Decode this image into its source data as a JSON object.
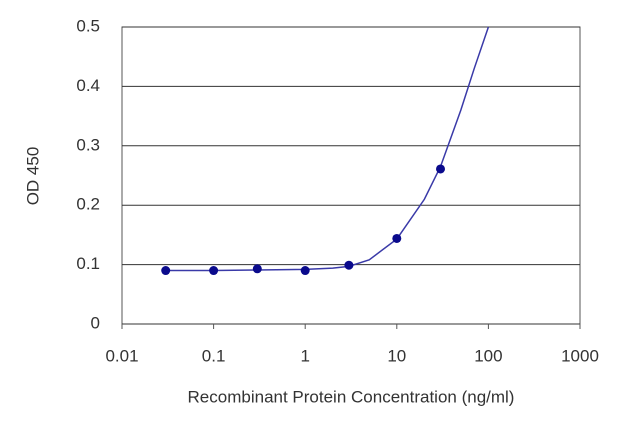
{
  "chart_data": {
    "type": "scatter",
    "y_label": "OD 450",
    "x_label": "Recombinant Protein Concentration (ng/ml)",
    "x": [
      0.03,
      0.1,
      0.3,
      1,
      3,
      10,
      30
    ],
    "values": [
      0.09,
      0.09,
      0.093,
      0.09,
      0.099,
      0.144,
      0.261
    ],
    "color": "#0a0a8c",
    "fit": {
      "x": [
        0.03,
        0.1,
        0.3,
        1,
        2,
        3,
        5,
        10,
        20,
        30,
        50,
        70,
        100
      ],
      "values": [
        0.09,
        0.09,
        0.091,
        0.092,
        0.094,
        0.097,
        0.108,
        0.143,
        0.21,
        0.265,
        0.36,
        0.43,
        0.5
      ],
      "color": "#3a3aa8"
    },
    "xscale": "log",
    "xlim": [
      0.01,
      1000
    ],
    "xticks": [
      0.01,
      0.1,
      1,
      10,
      100,
      1000
    ],
    "ylim": [
      0,
      0.5
    ],
    "yticks": [
      0,
      0.1,
      0.2,
      0.3,
      0.4,
      0.5
    ],
    "grid": true
  }
}
